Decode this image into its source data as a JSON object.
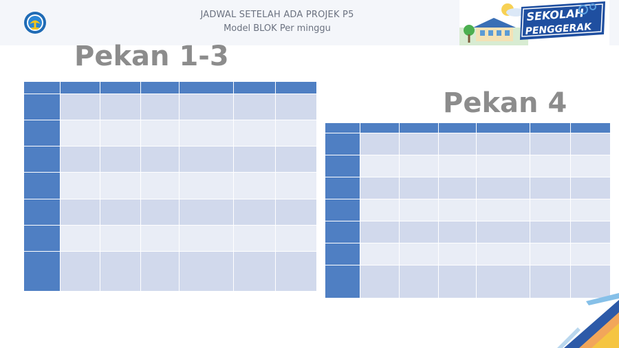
{
  "header": {
    "title_line1": "JADWAL SETELAH ADA PROJEK P5",
    "title_line2": "Model BLOK Per minggu"
  },
  "badge": {
    "text_line1": "SEKOLAH",
    "text_line2": "PENGGERAK"
  },
  "sections": {
    "pekan13": {
      "title": "Pekan 1-3"
    },
    "pekan4": {
      "title": "Pekan 4"
    }
  },
  "colors": {
    "header_blue": "#4f7fc3",
    "row_light": "#e9edf6",
    "row_dark": "#d1d9ec",
    "title_gray": "#8c8c8c"
  }
}
